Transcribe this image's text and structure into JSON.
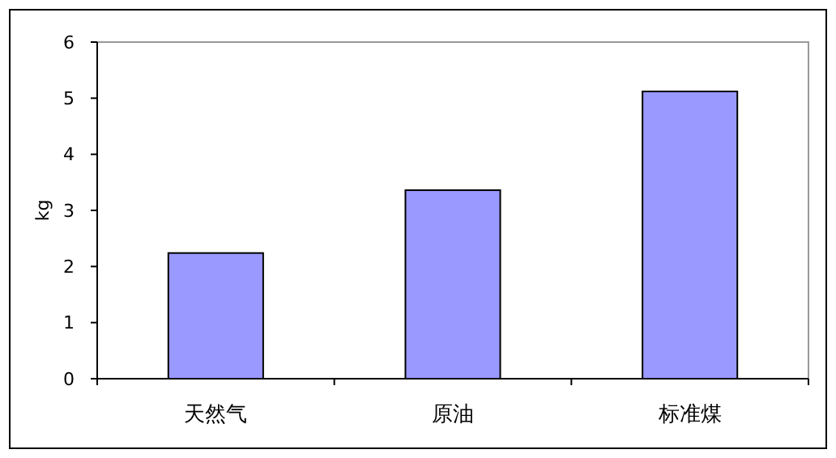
{
  "chart_data": {
    "type": "bar",
    "ylabel": "kg",
    "categories": [
      "天然气",
      "原油",
      "标准煤"
    ],
    "values": [
      2.24,
      3.36,
      5.12
    ],
    "color": "#9999ff",
    "ylim": [
      0,
      6
    ],
    "yticks": [
      0,
      1,
      2,
      3,
      4,
      5,
      6
    ],
    "grid": false
  }
}
